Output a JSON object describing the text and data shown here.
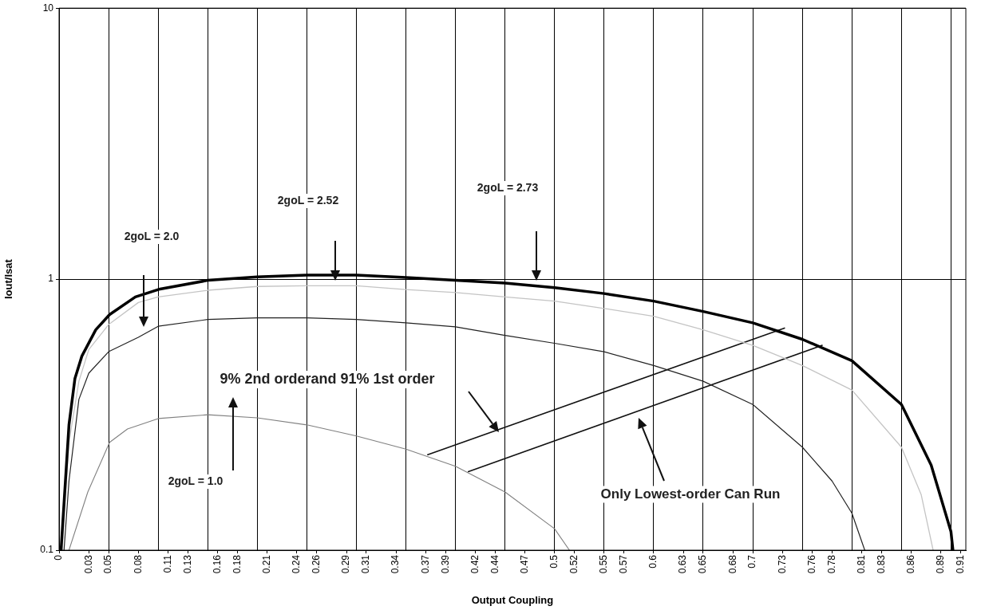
{
  "chart_data": {
    "type": "line",
    "xlabel": "Output Coupling",
    "ylabel": "Iout/Isat",
    "log": "y",
    "grid": true,
    "legend": false,
    "marker": "none",
    "line_style": "solid",
    "xlim": [
      0,
      0.915
    ],
    "ylim": [
      0.1,
      10
    ],
    "yticks": [
      0.1,
      1,
      10
    ],
    "xticks": [
      0,
      0.03,
      0.05,
      0.08,
      0.11,
      0.13,
      0.16,
      0.18,
      0.21,
      0.24,
      0.26,
      0.29,
      0.31,
      0.34,
      0.37,
      0.39,
      0.42,
      0.44,
      0.47,
      0.5,
      0.52,
      0.55,
      0.57,
      0.6,
      0.63,
      0.65,
      0.68,
      0.7,
      0.73,
      0.76,
      0.78,
      0.81,
      0.83,
      0.86,
      0.89,
      0.91,
      {
        "value": 0.05,
        "label": null
      },
      {
        "value": 0.1,
        "label": null
      },
      {
        "value": 0.15,
        "label": null
      },
      {
        "value": 0.2,
        "label": null
      },
      {
        "value": 0.25,
        "label": null
      },
      {
        "value": 0.3,
        "label": null
      },
      {
        "value": 0.35,
        "label": null
      },
      {
        "value": 0.4,
        "label": null
      },
      {
        "value": 0.45,
        "label": null
      },
      {
        "value": 0.5,
        "label": null
      },
      {
        "value": 0.55,
        "label": null
      },
      {
        "value": 0.6,
        "label": null
      },
      {
        "value": 0.65,
        "label": null
      },
      {
        "value": 0.7,
        "label": null
      },
      {
        "value": 0.75,
        "label": null
      },
      {
        "value": 0.8,
        "label": null
      },
      {
        "value": 0.85,
        "label": null
      },
      {
        "value": 0.9,
        "label": null
      }
    ],
    "series": [
      {
        "color": "#000000",
        "x": [
          0.002,
          0.01,
          0.016,
          0.023,
          0.037,
          0.051,
          0.077,
          0.102,
          0.15,
          0.2,
          0.25,
          0.3,
          0.35,
          0.4,
          0.45,
          0.5,
          0.55,
          0.6,
          0.65,
          0.7,
          0.75,
          0.8,
          0.85,
          0.88,
          0.9,
          0.902
        ],
        "values": [
          0.1,
          0.29,
          0.43,
          0.52,
          0.65,
          0.74,
          0.86,
          0.92,
          0.99,
          1.02,
          1.035,
          1.035,
          1.015,
          0.99,
          0.967,
          0.93,
          0.885,
          0.83,
          0.76,
          0.69,
          0.6,
          0.5,
          0.345,
          0.206,
          0.117,
          0.1
        ]
      },
      {
        "color": "#c4c4c4",
        "x": [
          0.003,
          0.01,
          0.02,
          0.03,
          0.05,
          0.08,
          0.1,
          0.15,
          0.2,
          0.25,
          0.3,
          0.35,
          0.4,
          0.45,
          0.5,
          0.55,
          0.6,
          0.65,
          0.7,
          0.75,
          0.8,
          0.85,
          0.87,
          0.882
        ],
        "values": [
          0.1,
          0.25,
          0.42,
          0.55,
          0.68,
          0.82,
          0.86,
          0.91,
          0.94,
          0.945,
          0.945,
          0.915,
          0.893,
          0.86,
          0.83,
          0.78,
          0.73,
          0.65,
          0.57,
          0.48,
          0.39,
          0.24,
          0.16,
          0.1
        ]
      },
      {
        "color": "#222222",
        "x": [
          0.005,
          0.01,
          0.02,
          0.03,
          0.05,
          0.08,
          0.1,
          0.15,
          0.2,
          0.25,
          0.3,
          0.35,
          0.4,
          0.45,
          0.5,
          0.55,
          0.6,
          0.65,
          0.7,
          0.75,
          0.78,
          0.8,
          0.813
        ],
        "values": [
          0.1,
          0.18,
          0.36,
          0.45,
          0.54,
          0.61,
          0.67,
          0.71,
          0.72,
          0.72,
          0.71,
          0.69,
          0.667,
          0.62,
          0.58,
          0.54,
          0.48,
          0.42,
          0.345,
          0.24,
          0.18,
          0.137,
          0.1
        ]
      },
      {
        "color": "#808080",
        "x": [
          0.01,
          0.029,
          0.051,
          0.069,
          0.1,
          0.15,
          0.2,
          0.25,
          0.3,
          0.35,
          0.4,
          0.45,
          0.5,
          0.515
        ],
        "values": [
          0.1,
          0.164,
          0.25,
          0.28,
          0.306,
          0.316,
          0.308,
          0.29,
          0.264,
          0.236,
          0.204,
          0.164,
          0.12,
          0.1
        ]
      },
      {
        "color": "#111111",
        "x": [
          0.372,
          0.732
        ],
        "values": [
          0.225,
          0.66
        ]
      },
      {
        "color": "#111111",
        "x": [
          0.413,
          0.77
        ],
        "values": [
          0.195,
          0.57
        ]
      }
    ],
    "annotations": [
      "2goL = 2.0",
      "2goL = 2.52",
      "2goL = 2.73",
      "2goL = 1.0",
      "9% 2nd orderand 91% 1st order",
      "Only Lowest-order Can Run"
    ]
  }
}
